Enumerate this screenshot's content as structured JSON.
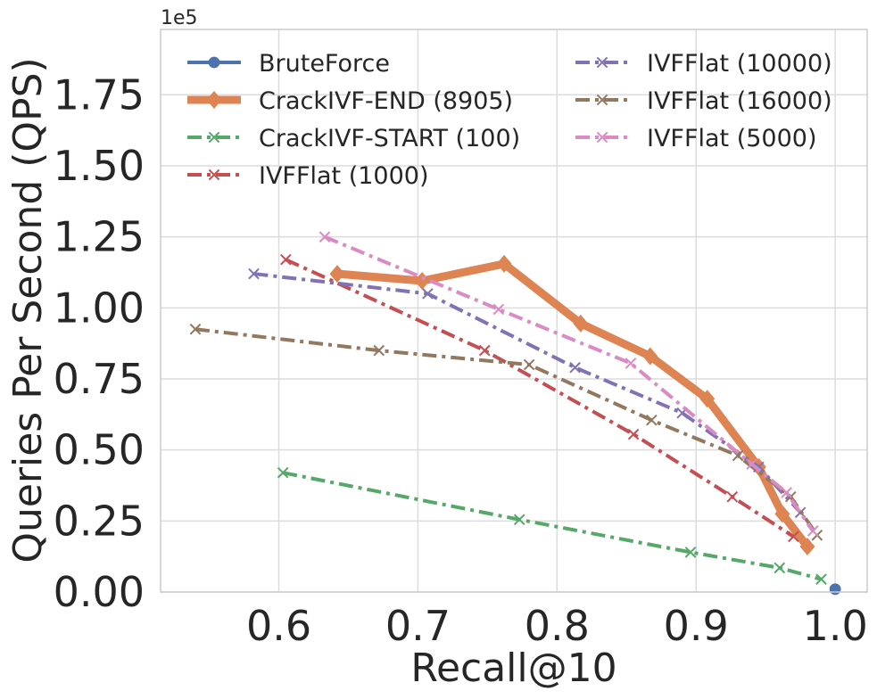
{
  "chart_data": {
    "type": "line",
    "title": "",
    "xlabel": "Recall@10",
    "ylabel": "Queries Per Second (QPS)",
    "y_offset_label": "1e5",
    "xlim": [
      0.515,
      1.023
    ],
    "ylim": [
      0,
      1.98
    ],
    "x_ticks": [
      0.6,
      0.7,
      0.8,
      0.9,
      1.0
    ],
    "x_tick_labels": [
      "0.6",
      "0.7",
      "0.8",
      "0.9",
      "1.0"
    ],
    "y_ticks": [
      0,
      0.25,
      0.5,
      0.75,
      1.0,
      1.25,
      1.5,
      1.75
    ],
    "y_tick_labels": [
      "0.00",
      "0.25",
      "0.50",
      "0.75",
      "1.00",
      "1.25",
      "1.50",
      "1.75"
    ],
    "grid": true,
    "legend_position": "top",
    "series": [
      {
        "name": "BruteForce",
        "color": "#4c72b0",
        "line_style": "solid",
        "marker": "circle",
        "line_width": 4,
        "points": [
          [
            1.0,
            0.01
          ]
        ]
      },
      {
        "name": "CrackIVF-END (8905)",
        "color": "#dd8452",
        "line_style": "solid",
        "marker": "diamond",
        "line_width": 9,
        "points": [
          [
            0.642,
            1.12
          ],
          [
            0.703,
            1.095
          ],
          [
            0.762,
            1.155
          ],
          [
            0.817,
            0.945
          ],
          [
            0.867,
            0.83
          ],
          [
            0.908,
            0.68
          ],
          [
            0.945,
            0.44
          ],
          [
            0.962,
            0.275
          ],
          [
            0.98,
            0.16
          ]
        ]
      },
      {
        "name": "CrackIVF-START (100)",
        "color": "#55a868",
        "line_style": "dashdot",
        "marker": "x",
        "line_width": 4,
        "points": [
          [
            0.603,
            0.42
          ],
          [
            0.773,
            0.255
          ],
          [
            0.896,
            0.14
          ],
          [
            0.96,
            0.085
          ],
          [
            0.99,
            0.045
          ]
        ]
      },
      {
        "name": "IVFFlat (1000)",
        "color": "#c44e52",
        "line_style": "dashdot",
        "marker": "x",
        "line_width": 4,
        "points": [
          [
            0.605,
            1.17
          ],
          [
            0.748,
            0.85
          ],
          [
            0.855,
            0.555
          ],
          [
            0.926,
            0.335
          ],
          [
            0.97,
            0.195
          ]
        ]
      },
      {
        "name": "IVFFlat (10000)",
        "color": "#8172b3",
        "line_style": "dashdot",
        "marker": "x",
        "line_width": 4,
        "points": [
          [
            0.582,
            1.12
          ],
          [
            0.707,
            1.05
          ],
          [
            0.813,
            0.79
          ],
          [
            0.89,
            0.63
          ],
          [
            0.945,
            0.44
          ],
          [
            0.975,
            0.28
          ]
        ]
      },
      {
        "name": "IVFFlat (16000)",
        "color": "#937860",
        "line_style": "dashdot",
        "marker": "x",
        "line_width": 4,
        "points": [
          [
            0.54,
            0.925
          ],
          [
            0.672,
            0.85
          ],
          [
            0.78,
            0.8
          ],
          [
            0.868,
            0.605
          ],
          [
            0.93,
            0.48
          ],
          [
            0.968,
            0.335
          ],
          [
            0.987,
            0.2
          ]
        ]
      },
      {
        "name": "IVFFlat (5000)",
        "color": "#da8bc3",
        "line_style": "dashdot",
        "marker": "x",
        "line_width": 4,
        "points": [
          [
            0.633,
            1.25
          ],
          [
            0.758,
            0.995
          ],
          [
            0.853,
            0.805
          ],
          [
            0.94,
            0.45
          ],
          [
            0.965,
            0.35
          ],
          [
            0.984,
            0.215
          ]
        ]
      }
    ]
  }
}
